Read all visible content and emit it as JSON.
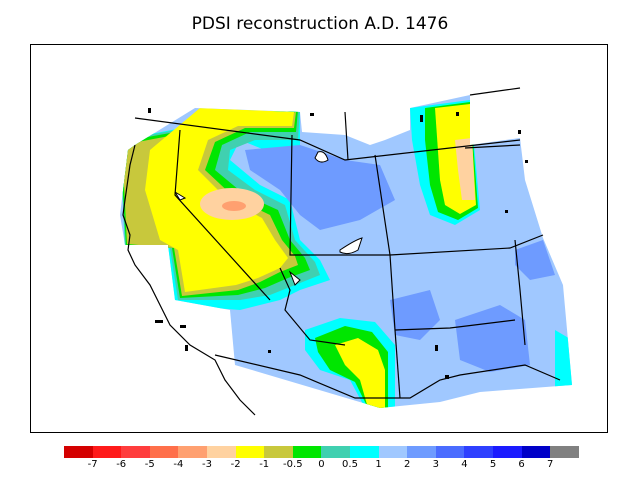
{
  "title": "PDSI reconstruction A.D. 1476",
  "colors": {
    "lt_m7": "#d40000",
    "m7_m6": "#ff1a1a",
    "m6_m5": "#ff3d3d",
    "m5_m4": "#ff6f4a",
    "m4_m3": "#ffa070",
    "m3_m2": "#ffd2a0",
    "m2_m1": "#ffff00",
    "m1_m05": "#c8c83c",
    "m05_0": "#00e600",
    "0_05": "#40d0b0",
    "05_1": "#00ffff",
    "1_2": "#a0c8ff",
    "2_3": "#6e9bff",
    "3_4": "#4a6cff",
    "4_5": "#2e40ff",
    "5_6": "#1b1bff",
    "6_7": "#0000c8",
    "gt_7": "#808080"
  },
  "colorbar": {
    "swatches": [
      "#d40000",
      "#ff1a1a",
      "#ff3d3d",
      "#ff6f4a",
      "#ffa070",
      "#ffd2a0",
      "#ffff00",
      "#c8c83c",
      "#00e600",
      "#40d0b0",
      "#00ffff",
      "#a0c8ff",
      "#6e9bff",
      "#4a6cff",
      "#2e40ff",
      "#1b1bff",
      "#0000c8",
      "#808080"
    ],
    "ticks": [
      "-7",
      "-6",
      "-5",
      "-4",
      "-3",
      "-2",
      "-1",
      "-0.5",
      "0",
      "0.5",
      "1",
      "2",
      "3",
      "4",
      "5",
      "6",
      "7"
    ]
  }
}
